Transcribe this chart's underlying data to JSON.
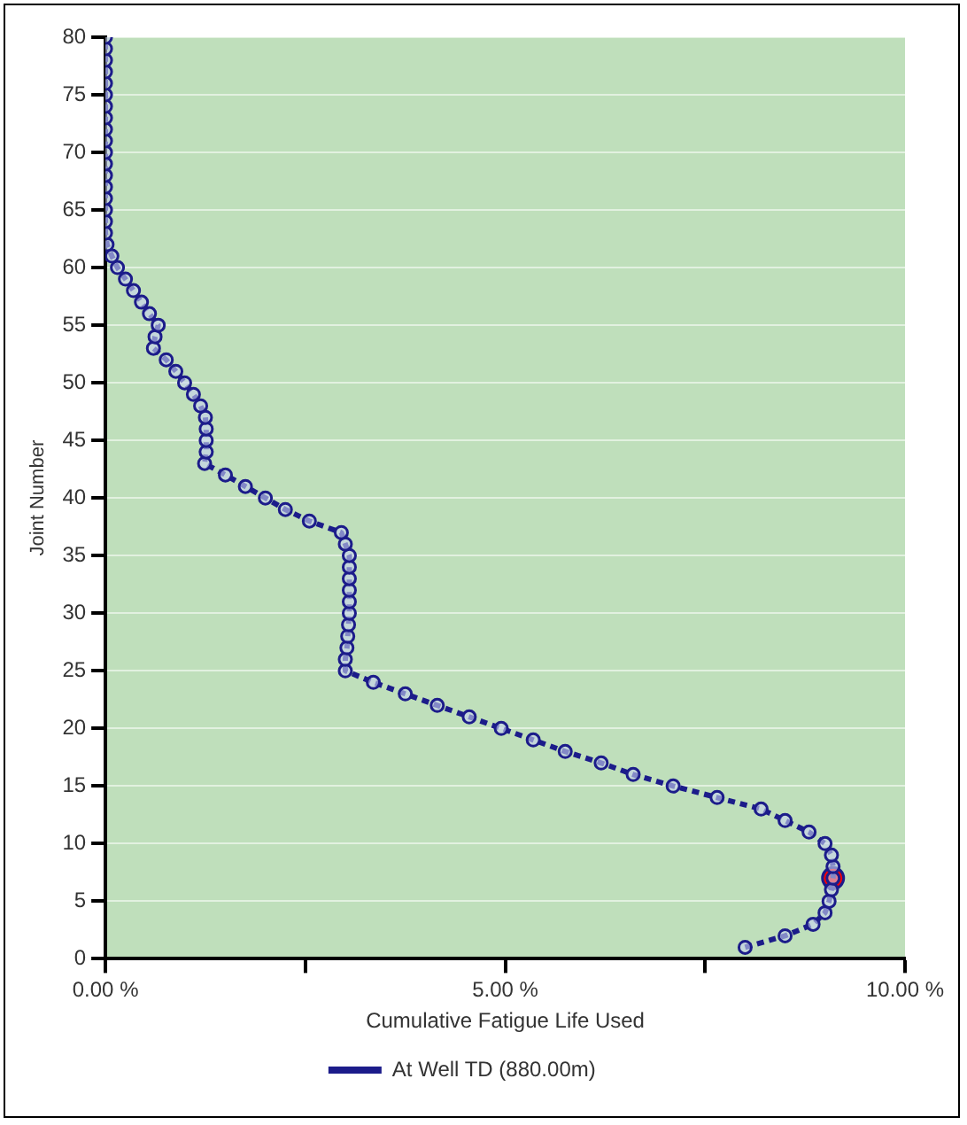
{
  "chart_data": {
    "type": "line",
    "xlabel": "Cumulative Fatigue Life Used",
    "ylabel": "Joint Number",
    "xlim": [
      0,
      10
    ],
    "xticks": [
      {
        "value": 0,
        "label": "0.00 %"
      },
      {
        "value": 2.5,
        "label": null
      },
      {
        "value": 5,
        "label": "5.00 %"
      },
      {
        "value": 7.5,
        "label": null
      },
      {
        "value": 10,
        "label": "10.00 %"
      }
    ],
    "ylim": [
      0,
      80
    ],
    "yticks": [
      0,
      5,
      10,
      15,
      20,
      25,
      30,
      35,
      40,
      45,
      50,
      55,
      60,
      65,
      70,
      75,
      80
    ],
    "grid": "y",
    "legend": "bottom",
    "marker": "circle",
    "line_style": "dotted",
    "series": [
      {
        "name": "At Well TD (880.00m)",
        "color": "#1c1c8a",
        "x": [
          8.0,
          8.5,
          8.85,
          9.0,
          9.05,
          9.08,
          9.1,
          9.1,
          9.08,
          9.0,
          8.8,
          8.5,
          8.2,
          7.65,
          7.1,
          6.6,
          6.2,
          5.75,
          5.35,
          4.95,
          4.55,
          4.15,
          3.75,
          3.35,
          3.0,
          3.0,
          3.02,
          3.03,
          3.04,
          3.05,
          3.05,
          3.05,
          3.05,
          3.05,
          3.05,
          3.0,
          2.95,
          2.55,
          2.25,
          2.0,
          1.75,
          1.5,
          1.24,
          1.26,
          1.26,
          1.26,
          1.25,
          1.19,
          1.1,
          0.99,
          0.88,
          0.76,
          0.6,
          0.62,
          0.66,
          0.55,
          0.45,
          0.35,
          0.25,
          0.15,
          0.08,
          0.02,
          0,
          0,
          0,
          0,
          0,
          0,
          0,
          0,
          0,
          0,
          0,
          0,
          0,
          0,
          0,
          0,
          0,
          0
        ],
        "values": [
          1,
          2,
          3,
          4,
          5,
          6,
          7,
          8,
          9,
          10,
          11,
          12,
          13,
          14,
          15,
          16,
          17,
          18,
          19,
          20,
          21,
          22,
          23,
          24,
          25,
          26,
          27,
          28,
          29,
          30,
          31,
          32,
          33,
          34,
          35,
          36,
          37,
          38,
          39,
          40,
          41,
          42,
          43,
          44,
          45,
          46,
          47,
          48,
          49,
          50,
          51,
          52,
          53,
          54,
          55,
          56,
          57,
          58,
          59,
          60,
          61,
          62,
          63,
          64,
          65,
          66,
          67,
          68,
          69,
          70,
          71,
          72,
          73,
          74,
          75,
          76,
          77,
          78,
          79,
          80
        ]
      },
      {
        "type": "scatter",
        "color": "#ff0000",
        "x": [
          9.1
        ],
        "values": [
          7
        ]
      }
    ]
  }
}
